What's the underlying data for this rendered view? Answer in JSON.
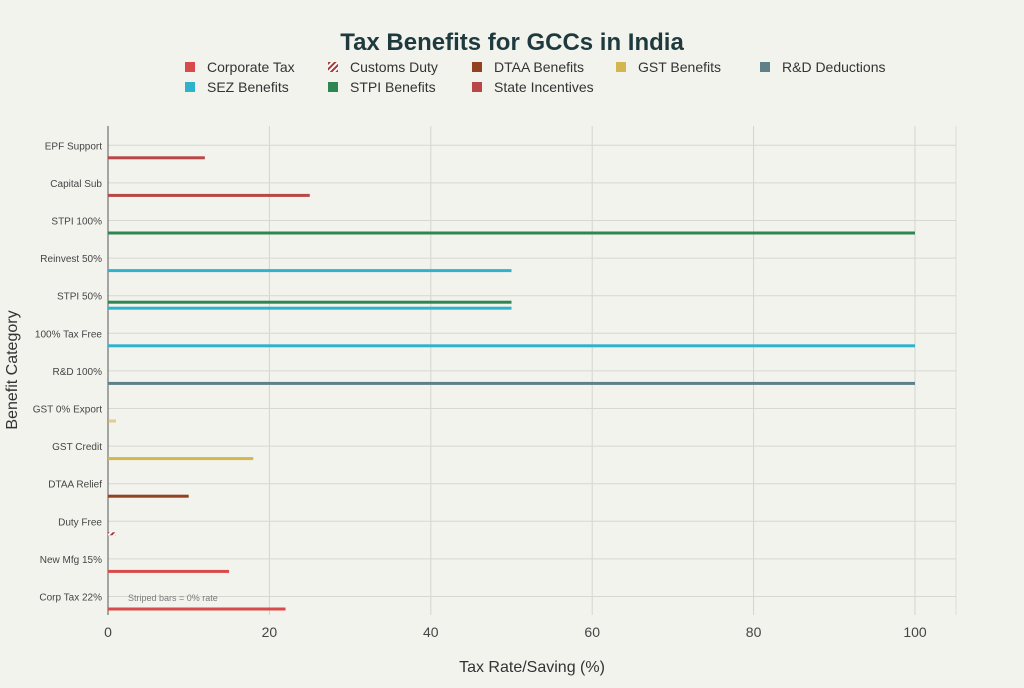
{
  "chart_data": {
    "type": "bar",
    "orientation": "horizontal",
    "title": "Tax Benefits for GCCs in India",
    "xlabel": "Tax Rate/Saving (%)",
    "ylabel": "Benefit Category",
    "xlim": [
      0,
      105
    ],
    "xticks": [
      0,
      20,
      40,
      60,
      80,
      100
    ],
    "grid": true,
    "legend_position": "top",
    "annotation": "Striped bars = 0% rate",
    "categories": [
      "Corp Tax 22%",
      "New Mfg 15%",
      "Duty Free",
      "DTAA Relief",
      "GST Credit",
      "GST 0% Export",
      "R&D 100%",
      "100% Tax Free",
      "STPI 50%",
      "Reinvest 50%",
      "STPI 100%",
      "Capital Sub",
      "EPF Support"
    ],
    "series": [
      {
        "name": "Corporate Tax",
        "color": "#d94a4a",
        "pattern": "solid",
        "values": [
          22,
          15,
          null,
          null,
          null,
          null,
          null,
          null,
          null,
          null,
          null,
          null,
          null
        ]
      },
      {
        "name": "Customs Duty",
        "color": "#a33a3a",
        "pattern": "striped",
        "values": [
          null,
          null,
          0,
          null,
          null,
          null,
          null,
          null,
          null,
          null,
          null,
          null,
          null
        ]
      },
      {
        "name": "DTAA Benefits",
        "color": "#94411f",
        "pattern": "solid",
        "values": [
          null,
          null,
          null,
          10,
          null,
          null,
          null,
          null,
          null,
          null,
          null,
          null,
          null
        ]
      },
      {
        "name": "GST Benefits",
        "color": "#d2b64e",
        "pattern": "solid",
        "values": [
          null,
          null,
          null,
          null,
          18,
          0,
          null,
          null,
          null,
          null,
          null,
          null,
          null
        ]
      },
      {
        "name": "R&D Deductions",
        "color": "#5e8088",
        "pattern": "solid",
        "values": [
          null,
          null,
          null,
          null,
          null,
          null,
          100,
          null,
          null,
          null,
          null,
          null,
          null
        ]
      },
      {
        "name": "SEZ Benefits",
        "color": "#2fb3cc",
        "pattern": "solid",
        "values": [
          null,
          null,
          null,
          null,
          null,
          null,
          null,
          100,
          50,
          50,
          null,
          null,
          null
        ]
      },
      {
        "name": "STPI Benefits",
        "color": "#2e8652",
        "pattern": "solid",
        "values": [
          null,
          null,
          null,
          null,
          null,
          null,
          null,
          null,
          50,
          null,
          100,
          null,
          null
        ]
      },
      {
        "name": "State Incentives",
        "color": "#b84848",
        "pattern": "solid",
        "values": [
          null,
          null,
          null,
          null,
          null,
          null,
          null,
          null,
          null,
          null,
          null,
          25,
          12
        ]
      }
    ]
  }
}
